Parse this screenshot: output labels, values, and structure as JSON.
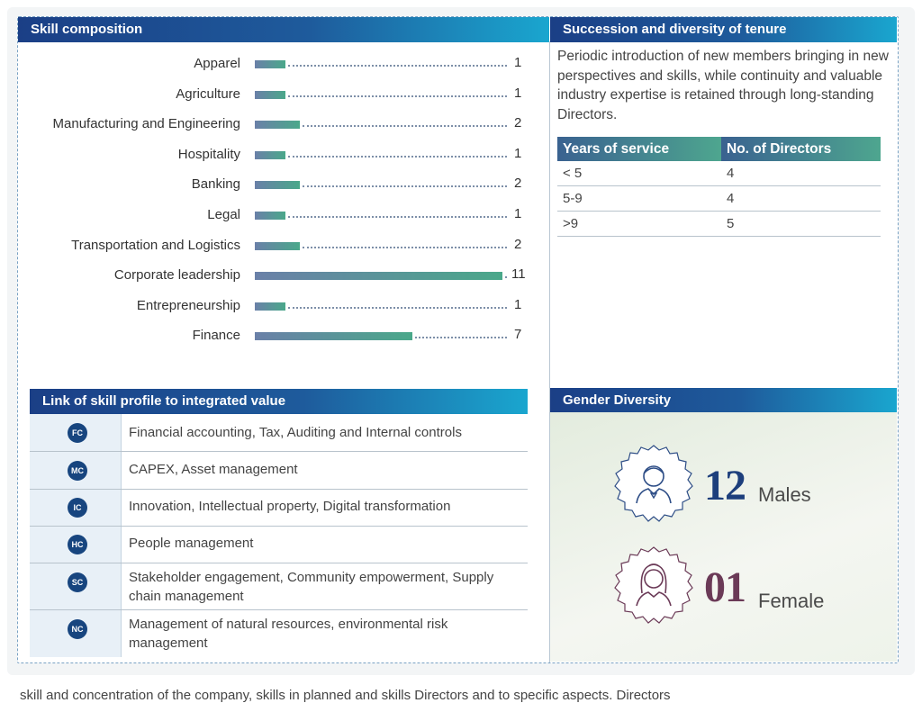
{
  "skill_composition": {
    "title": "Skill composition",
    "items": [
      {
        "label": "Apparel",
        "value": 1
      },
      {
        "label": "Agriculture",
        "value": 1
      },
      {
        "label": "Manufacturing and Engineering",
        "value": 2
      },
      {
        "label": "Hospitality",
        "value": 1
      },
      {
        "label": "Banking",
        "value": 2
      },
      {
        "label": "Legal",
        "value": 1
      },
      {
        "label": "Transportation and Logistics",
        "value": 2
      },
      {
        "label": "Corporate leadership",
        "value": 11
      },
      {
        "label": "Entrepreneurship",
        "value": 1
      },
      {
        "label": "Finance",
        "value": 7
      }
    ]
  },
  "succession": {
    "title": "Succession and diversity of tenure",
    "intro": "Periodic introduction of new members bringing in new perspectives and skills, while continuity and valuable industry expertise is retained through long-standing Directors.",
    "table": {
      "headers": [
        "Years of service",
        "No. of Directors"
      ],
      "rows": [
        [
          "< 5",
          "4"
        ],
        [
          "5-9",
          "4"
        ],
        [
          ">9",
          "5"
        ]
      ]
    }
  },
  "link_skill": {
    "title": "Link of skill profile to integrated value",
    "rows": [
      {
        "badge": "FC",
        "text": "Financial accounting, Tax, Auditing and Internal controls"
      },
      {
        "badge": "MC",
        "text": "CAPEX, Asset management"
      },
      {
        "badge": "IC",
        "text": "Innovation, Intellectual property, Digital transformation"
      },
      {
        "badge": "HC",
        "text": "People management"
      },
      {
        "badge": "SC",
        "text": "Stakeholder engagement, Community empowerment, Supply chain management"
      },
      {
        "badge": "NC",
        "text": "Management of natural resources, environmental risk management"
      }
    ]
  },
  "gender": {
    "title": "Gender Diversity",
    "males": {
      "count": "12",
      "label": "Males",
      "color": "#1d3f7c",
      "icon": "male-avatar-icon"
    },
    "female": {
      "count": "01",
      "label": "Female",
      "color": "#6b3a57",
      "icon": "female-avatar-icon"
    }
  },
  "footer_text": "skill and concentration of the company,                         skills in planned and skills Directors and                                  to specific aspects. Directors"
}
